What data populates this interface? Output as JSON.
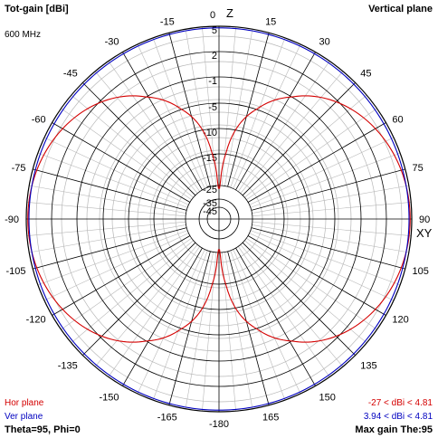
{
  "header": {
    "title": "Tot-gain [dBi]",
    "frequency": "600 MHz",
    "plane": "Vertical plane"
  },
  "legend": {
    "hor_label": "Hor plane",
    "ver_label": "Ver plane",
    "hor_range": "-27 < dBi < 4.81",
    "ver_range": "3.94 < dBi < 4.81"
  },
  "footer": {
    "angles": "Theta=95, Phi=0",
    "max_gain": "Max gain The:95"
  },
  "colors": {
    "hor": "#d40000",
    "ver": "#0000c0",
    "grid": "#000000",
    "minor_grid": "#b8b8b8"
  },
  "chart_data": {
    "type": "polar",
    "angle_labels": [
      {
        "deg": 0,
        "label": "0"
      },
      {
        "deg": 15,
        "label": "15"
      },
      {
        "deg": 30,
        "label": "30"
      },
      {
        "deg": 45,
        "label": "45"
      },
      {
        "deg": 60,
        "label": "60"
      },
      {
        "deg": 75,
        "label": "75"
      },
      {
        "deg": 90,
        "label": "90"
      },
      {
        "deg": 105,
        "label": "105"
      },
      {
        "deg": 120,
        "label": "120"
      },
      {
        "deg": 135,
        "label": "135"
      },
      {
        "deg": 150,
        "label": "150"
      },
      {
        "deg": 165,
        "label": "165"
      },
      {
        "deg": 180,
        "label": "-180"
      },
      {
        "deg": 195,
        "label": "-165"
      },
      {
        "deg": 210,
        "label": "-150"
      },
      {
        "deg": 225,
        "label": "-135"
      },
      {
        "deg": 240,
        "label": "-120"
      },
      {
        "deg": 255,
        "label": "-105"
      },
      {
        "deg": 270,
        "label": "-90"
      },
      {
        "deg": 285,
        "label": "-75"
      },
      {
        "deg": 300,
        "label": "-60"
      },
      {
        "deg": 315,
        "label": "-45"
      },
      {
        "deg": 330,
        "label": "-30"
      },
      {
        "deg": 345,
        "label": "-15"
      }
    ],
    "axis_letters": {
      "top": "Z",
      "right": "XY"
    },
    "radial_labels": [
      "5",
      "2",
      "-1",
      "-5",
      "-10",
      "-15",
      "-25",
      "-35",
      "-45"
    ],
    "radial_rings_db": [
      5,
      2,
      -1,
      -5,
      -10,
      -15,
      -25,
      -35,
      -45
    ],
    "radial_range_db": [
      -50,
      5
    ],
    "series": [
      {
        "name": "Hor plane",
        "color": "#d40000",
        "min_db": -27,
        "max_db": 4.81,
        "pattern": "dipole"
      },
      {
        "name": "Ver plane",
        "color": "#0000c0",
        "min_db": 3.94,
        "max_db": 4.81,
        "pattern": "omni"
      }
    ]
  }
}
